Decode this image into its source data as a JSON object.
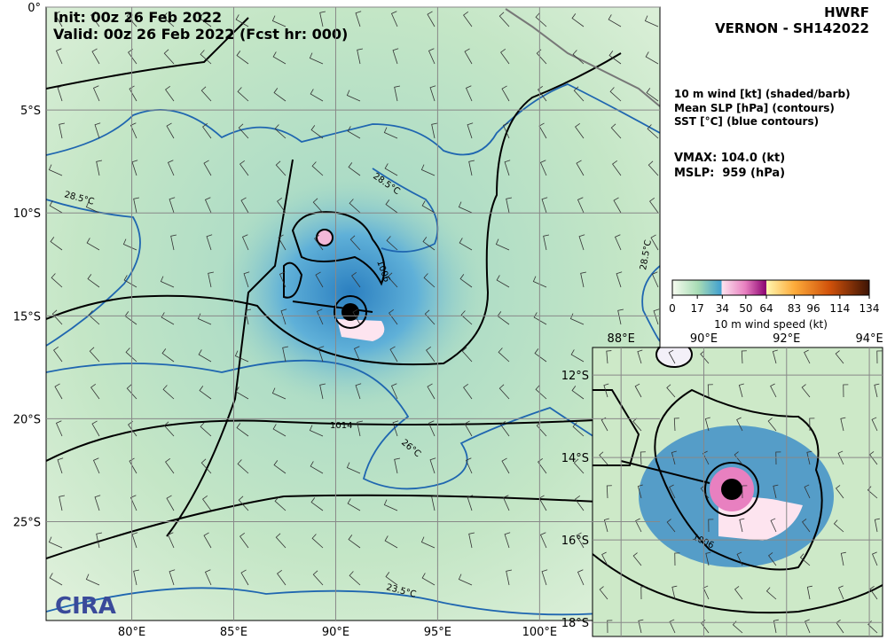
{
  "header": {
    "init": "Init: 00z 26 Feb 2022",
    "valid": "Valid: 00z 26 Feb 2022 (Fcst hr: 000)",
    "model": "HWRF",
    "storm": "VERNON - SH142022"
  },
  "legend": {
    "lines": [
      "10 m wind [kt] (shaded/barb)",
      "Mean SLP [hPa] (contours)",
      "SST [°C] (blue contours)"
    ],
    "vmax": "VMAX: 104.0 (kt)",
    "mslp": "MSLP:  959 (hPa)"
  },
  "colorbar": {
    "label": "10 m wind speed (kt)",
    "lim": [
      0,
      134
    ],
    "ticks": [
      0,
      17,
      34,
      50,
      64,
      83,
      96,
      114,
      134
    ]
  },
  "map": {
    "xlim": [
      75.8,
      105.9
    ],
    "ylim": [
      -29.8,
      0
    ],
    "xticks": [
      {
        "value": 80,
        "label": "80°E"
      },
      {
        "value": 85,
        "label": "85°E"
      },
      {
        "value": 90,
        "label": "90°E"
      },
      {
        "value": 95,
        "label": "95°E"
      },
      {
        "value": 100,
        "label": "100°E"
      }
    ],
    "yticks": [
      {
        "value": 0,
        "label": "0°"
      },
      {
        "value": -5,
        "label": "5°S"
      },
      {
        "value": -10,
        "label": "10°S"
      },
      {
        "value": -15,
        "label": "15°S"
      },
      {
        "value": -20,
        "label": "20°S"
      },
      {
        "value": -25,
        "label": "25°S"
      }
    ],
    "contour_labels": [
      "28.5°C",
      "28.5°C",
      "28.5°C",
      "1006",
      "1014",
      "26°C",
      "23.5°C"
    ],
    "logo": "CIRA"
  },
  "inset": {
    "xlim": [
      87.31,
      94.32
    ],
    "ylim": [
      -18.34,
      -11.33
    ],
    "xticks": [
      {
        "value": 88,
        "label": "88°E"
      },
      {
        "value": 90,
        "label": "90°E"
      },
      {
        "value": 92,
        "label": "92°E"
      },
      {
        "value": 94,
        "label": "94°E"
      }
    ],
    "yticks": [
      {
        "value": -12,
        "label": "12°S"
      },
      {
        "value": -14,
        "label": "14°S"
      },
      {
        "value": -16,
        "label": "16°S"
      },
      {
        "value": -18,
        "label": "18°S"
      }
    ],
    "contour_labels": [
      "1006"
    ]
  }
}
